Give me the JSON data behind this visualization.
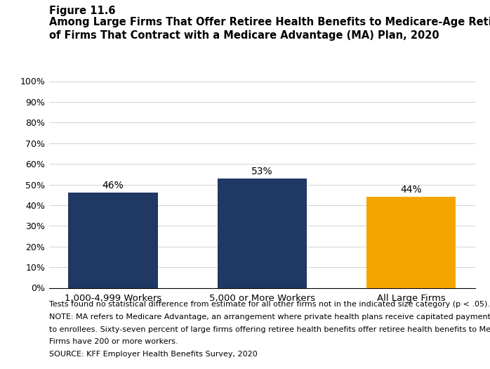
{
  "figure_label": "Figure 11.6",
  "title_line1": "Among Large Firms That Offer Retiree Health Benefits to Medicare-Age Retirees, Percentage",
  "title_line2": "of Firms That Contract with a Medicare Advantage (MA) Plan, 2020",
  "categories": [
    "1,000-4,999 Workers",
    "5,000 or More Workers",
    "All Large Firms"
  ],
  "values": [
    46,
    53,
    44
  ],
  "bar_colors": [
    "#1f3864",
    "#1f3864",
    "#f5a500"
  ],
  "bar_labels": [
    "46%",
    "53%",
    "44%"
  ],
  "ylim": [
    0,
    100
  ],
  "yticks": [
    0,
    10,
    20,
    30,
    40,
    50,
    60,
    70,
    80,
    90,
    100
  ],
  "ytick_labels": [
    "0%",
    "10%",
    "20%",
    "30%",
    "40%",
    "50%",
    "60%",
    "70%",
    "80%",
    "90%",
    "100%"
  ],
  "footnotes": [
    "Tests found no statistical difference from estimate for all other firms not in the indicated size category (p < .05).",
    "NOTE: MA refers to Medicare Advantage, an arrangement where private health plans receive capitated payments to provide all Medicare-covered services",
    "to enrollees. Sixty-seven percent of large firms offering retiree health benefits offer retiree health benefits to Medicare-age retirees.   Large",
    "Firms have 200 or more workers.",
    "SOURCE: KFF Employer Health Benefits Survey, 2020"
  ],
  "background_color": "#ffffff",
  "label_fontsize": 9.5,
  "tick_fontsize": 9,
  "title_fontsize": 10.5,
  "figure_label_fontsize": 10.5,
  "footnote_fontsize": 8,
  "bar_label_fontsize": 10
}
